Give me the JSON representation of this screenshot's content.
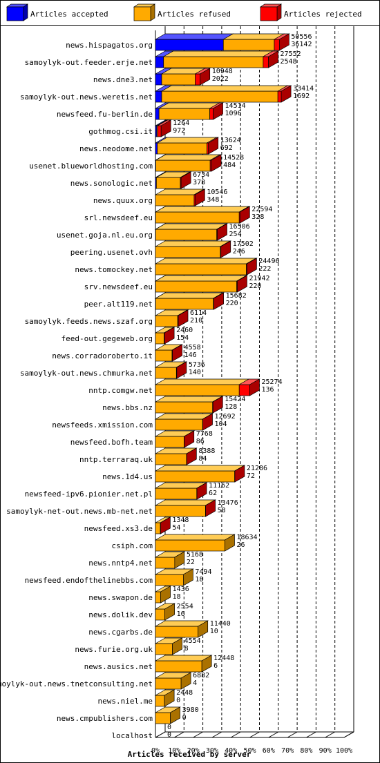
{
  "legend": [
    {
      "label": "Articles accepted",
      "color": "#0000ff"
    },
    {
      "label": "Articles refused",
      "color": "#ffaa00"
    },
    {
      "label": "Articles rejected",
      "color": "#ff0000"
    }
  ],
  "chart_data": {
    "type": "bar",
    "orientation": "horizontal",
    "stacked": true,
    "xlabel": "Articles received by server",
    "ticks": [
      "0%",
      "10%",
      "20%",
      "30%",
      "40%",
      "50%",
      "60%",
      "70%",
      "80%",
      "90%",
      "100%"
    ],
    "xlim": [
      0,
      100
    ],
    "grid": true,
    "legend_position": "top",
    "series": [
      {
        "name": "Articles accepted",
        "color": "#0000ff"
      },
      {
        "name": "Articles refused",
        "color": "#ffaa00"
      },
      {
        "name": "Articles rejected",
        "color": "#ff0000"
      }
    ],
    "rows": [
      {
        "server": "news.hispagatos.org",
        "total": "50556",
        "rejected": "36142",
        "pct": [
          36,
          27,
          2.7
        ]
      },
      {
        "server": "samoylyk-out.feeder.erje.net",
        "total": "27552",
        "rejected": "2548",
        "pct": [
          4.3,
          52.8,
          2.8
        ]
      },
      {
        "server": "news.dne3.net",
        "total": "10948",
        "rejected": "2022",
        "pct": [
          3.3,
          17.8,
          2.6
        ]
      },
      {
        "server": "samoylyk-out.news.weretis.net",
        "total": "33414",
        "rejected": "1692",
        "pct": [
          3.3,
          61.6,
          1.8
        ]
      },
      {
        "server": "newsfeed.fu-berlin.de",
        "total": "14514",
        "rejected": "1096",
        "pct": [
          1.9,
          26.9,
          1.8
        ]
      },
      {
        "server": "gothmog.csi.it",
        "total": "1264",
        "rejected": "972",
        "pct": [
          0.7,
          0.5,
          1.8
        ]
      },
      {
        "server": "news.neodome.net",
        "total": "13624",
        "rejected": "692",
        "pct": [
          1.0,
          26.3,
          0.8
        ]
      },
      {
        "server": "usenet.blueworldhosting.com",
        "total": "14528",
        "rejected": "484",
        "pct": [
          0.2,
          28.8,
          0.7
        ]
      },
      {
        "server": "news.sonologic.net",
        "total": "6734",
        "rejected": "378",
        "pct": [
          0.5,
          12.7,
          0.4
        ]
      },
      {
        "server": "news.quux.org",
        "total": "10546",
        "rejected": "348",
        "pct": [
          0,
          20.5,
          0.5
        ]
      },
      {
        "server": "srl.newsdeef.eu",
        "total": "22594",
        "rejected": "328",
        "pct": [
          0.1,
          44.3,
          0.4
        ]
      },
      {
        "server": "usenet.goja.nl.eu.org",
        "total": "16506",
        "rejected": "254",
        "pct": [
          0.1,
          32.4,
          0.3
        ]
      },
      {
        "server": "peering.usenet.ovh",
        "total": "17502",
        "rejected": "246",
        "pct": [
          0,
          34.4,
          0.3
        ]
      },
      {
        "server": "news.tomockey.net",
        "total": "24496",
        "rejected": "222",
        "pct": [
          0,
          48.2,
          0.3
        ]
      },
      {
        "server": "srv.newsdeef.eu",
        "total": "21942",
        "rejected": "220",
        "pct": [
          0.1,
          43.0,
          0.3
        ]
      },
      {
        "server": "peer.alt119.net",
        "total": "15682",
        "rejected": "220",
        "pct": [
          0.1,
          30.6,
          0.3
        ]
      },
      {
        "server": "samoylyk.feeds.news.szaf.org",
        "total": "6114",
        "rejected": "210",
        "pct": [
          0,
          11.8,
          0.3
        ]
      },
      {
        "server": "feed-out.gegeweb.org",
        "total": "2460",
        "rejected": "154",
        "pct": [
          0,
          4.6,
          0.2
        ]
      },
      {
        "server": "news.corradoroberto.it",
        "total": "4558",
        "rejected": "146",
        "pct": [
          0,
          8.8,
          0.2
        ]
      },
      {
        "server": "samoylyk-out.news.chmurka.net",
        "total": "5736",
        "rejected": "140",
        "pct": [
          0,
          11.1,
          0.2
        ]
      },
      {
        "server": "nntp.comgw.net",
        "total": "25274",
        "rejected": "136",
        "pct": [
          0,
          44.4,
          5.6
        ]
      },
      {
        "server": "news.bbs.nz",
        "total": "15424",
        "rejected": "128",
        "pct": [
          0,
          30.3,
          0.2
        ]
      },
      {
        "server": "newsfeeds.xmission.com",
        "total": "12692",
        "rejected": "104",
        "pct": [
          0,
          25.0,
          0.1
        ]
      },
      {
        "server": "newsfeed.bofh.team",
        "total": "7768",
        "rejected": "86",
        "pct": [
          0,
          15.2,
          0.1
        ]
      },
      {
        "server": "nntp.terraraq.uk",
        "total": "8388",
        "rejected": "84",
        "pct": [
          0,
          16.5,
          0.1
        ]
      },
      {
        "server": "news.1d4.us",
        "total": "21286",
        "rejected": "72",
        "pct": [
          0,
          42.0,
          0.1
        ]
      },
      {
        "server": "newsfeed-ipv6.pionier.net.pl",
        "total": "11162",
        "rejected": "62",
        "pct": [
          0,
          21.9,
          0.1
        ]
      },
      {
        "server": "samoylyk-net-out.news.mb-net.net",
        "total": "13476",
        "rejected": "58",
        "pct": [
          0,
          26.5,
          0.1
        ]
      },
      {
        "server": "newsfeed.xs3.de",
        "total": "1348",
        "rejected": "54",
        "pct": [
          0,
          2.6,
          0.1
        ]
      },
      {
        "server": "csiph.com",
        "total": "18634",
        "rejected": "26",
        "pct": [
          0,
          36.8,
          0
        ]
      },
      {
        "server": "news.nntp4.net",
        "total": "5168",
        "rejected": "22",
        "pct": [
          0,
          10.2,
          0
        ]
      },
      {
        "server": "newsfeed.endofthelinebbs.com",
        "total": "7494",
        "rejected": "18",
        "pct": [
          0,
          14.8,
          0
        ]
      },
      {
        "server": "news.swapon.de",
        "total": "1436",
        "rejected": "18",
        "pct": [
          0,
          2.8,
          0
        ]
      },
      {
        "server": "news.dolik.dev",
        "total": "2554",
        "rejected": "16",
        "pct": [
          0,
          5.0,
          0
        ]
      },
      {
        "server": "news.cgarbs.de",
        "total": "11440",
        "rejected": "10",
        "pct": [
          0,
          22.6,
          0
        ]
      },
      {
        "server": "news.furie.org.uk",
        "total": "4554",
        "rejected": "8",
        "pct": [
          0,
          9.0,
          0
        ]
      },
      {
        "server": "news.ausics.net",
        "total": "12448",
        "rejected": "6",
        "pct": [
          0,
          24.6,
          0
        ]
      },
      {
        "server": "samoylyk-out.news.tnetconsulting.net",
        "total": "6882",
        "rejected": "4",
        "pct": [
          0,
          13.6,
          0
        ]
      },
      {
        "server": "news.niel.me",
        "total": "2448",
        "rejected": "0",
        "pct": [
          0,
          4.8,
          0
        ]
      },
      {
        "server": "news.cmpublishers.com",
        "total": "3980",
        "rejected": "0",
        "pct": [
          0,
          7.9,
          0
        ]
      },
      {
        "server": "localhost",
        "total": "0",
        "rejected": "0",
        "pct": [
          0,
          0,
          0
        ]
      }
    ]
  }
}
